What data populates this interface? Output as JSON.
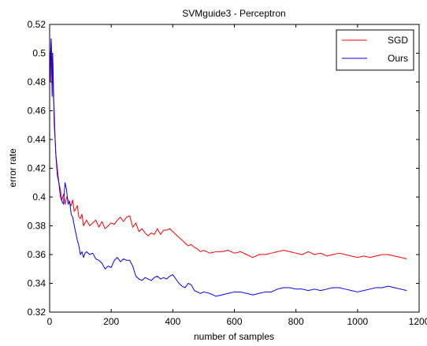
{
  "chart_data": {
    "type": "line",
    "title": "SVMguide3 - Perceptron",
    "xlabel": "number of samples",
    "ylabel": "error rate",
    "xlim": [
      0,
      1200
    ],
    "ylim": [
      0.32,
      0.52
    ],
    "xticks": [
      "0",
      "200",
      "400",
      "600",
      "800",
      "1000",
      "1200"
    ],
    "yticks": [
      "0.32",
      "0.34",
      "0.36",
      "0.38",
      "0.4",
      "0.42",
      "0.44",
      "0.46",
      "0.48",
      "0.5",
      "0.52"
    ],
    "grid": false,
    "legend_position": "top-right",
    "series": [
      {
        "name": "SGD",
        "color": "#ff0000",
        "x": [
          1,
          3,
          5,
          8,
          10,
          12,
          15,
          18,
          20,
          25,
          30,
          35,
          40,
          45,
          50,
          55,
          60,
          65,
          70,
          75,
          80,
          85,
          90,
          95,
          100,
          105,
          110,
          115,
          120,
          130,
          140,
          150,
          160,
          170,
          180,
          190,
          200,
          210,
          220,
          230,
          240,
          250,
          260,
          270,
          280,
          290,
          300,
          310,
          320,
          330,
          340,
          350,
          360,
          370,
          380,
          390,
          400,
          410,
          420,
          430,
          440,
          450,
          460,
          470,
          480,
          490,
          500,
          520,
          540,
          560,
          580,
          600,
          620,
          640,
          660,
          680,
          700,
          720,
          740,
          760,
          780,
          800,
          820,
          840,
          860,
          880,
          900,
          920,
          940,
          960,
          980,
          1000,
          1020,
          1040,
          1060,
          1080,
          1100,
          1120,
          1140,
          1160
        ],
        "values": [
          0.5,
          0.48,
          0.51,
          0.49,
          0.5,
          0.47,
          0.46,
          0.44,
          0.43,
          0.42,
          0.41,
          0.405,
          0.398,
          0.402,
          0.395,
          0.4,
          0.398,
          0.396,
          0.394,
          0.398,
          0.39,
          0.392,
          0.394,
          0.386,
          0.385,
          0.388,
          0.38,
          0.382,
          0.384,
          0.38,
          0.382,
          0.384,
          0.379,
          0.383,
          0.378,
          0.38,
          0.382,
          0.381,
          0.384,
          0.386,
          0.383,
          0.386,
          0.387,
          0.379,
          0.382,
          0.376,
          0.378,
          0.375,
          0.373,
          0.375,
          0.374,
          0.378,
          0.374,
          0.377,
          0.377,
          0.378,
          0.376,
          0.374,
          0.372,
          0.37,
          0.368,
          0.366,
          0.367,
          0.365,
          0.364,
          0.362,
          0.363,
          0.361,
          0.362,
          0.362,
          0.363,
          0.361,
          0.362,
          0.36,
          0.358,
          0.36,
          0.36,
          0.361,
          0.362,
          0.363,
          0.362,
          0.361,
          0.36,
          0.362,
          0.36,
          0.361,
          0.359,
          0.36,
          0.361,
          0.36,
          0.359,
          0.358,
          0.359,
          0.358,
          0.359,
          0.36,
          0.36,
          0.359,
          0.358,
          0.357
        ]
      },
      {
        "name": "Ours",
        "color": "#0000ff",
        "x": [
          1,
          3,
          5,
          8,
          10,
          12,
          15,
          18,
          20,
          25,
          30,
          35,
          40,
          45,
          50,
          55,
          60,
          65,
          70,
          75,
          80,
          85,
          90,
          95,
          100,
          105,
          110,
          115,
          120,
          130,
          140,
          150,
          160,
          170,
          180,
          190,
          200,
          210,
          220,
          230,
          240,
          250,
          260,
          270,
          280,
          290,
          300,
          310,
          320,
          330,
          340,
          350,
          360,
          370,
          380,
          390,
          400,
          410,
          420,
          430,
          440,
          450,
          460,
          470,
          480,
          490,
          500,
          520,
          540,
          560,
          580,
          600,
          620,
          640,
          660,
          680,
          700,
          720,
          740,
          760,
          780,
          800,
          820,
          840,
          860,
          880,
          900,
          920,
          940,
          960,
          980,
          1000,
          1020,
          1040,
          1060,
          1080,
          1100,
          1120,
          1140,
          1160
        ],
        "values": [
          0.48,
          0.5,
          0.51,
          0.47,
          0.5,
          0.48,
          0.45,
          0.44,
          0.43,
          0.415,
          0.41,
          0.4,
          0.397,
          0.395,
          0.41,
          0.405,
          0.395,
          0.397,
          0.388,
          0.386,
          0.38,
          0.375,
          0.37,
          0.366,
          0.36,
          0.362,
          0.358,
          0.361,
          0.362,
          0.36,
          0.361,
          0.357,
          0.356,
          0.354,
          0.35,
          0.352,
          0.351,
          0.356,
          0.358,
          0.355,
          0.357,
          0.356,
          0.356,
          0.352,
          0.345,
          0.343,
          0.342,
          0.344,
          0.343,
          0.342,
          0.344,
          0.345,
          0.343,
          0.344,
          0.343,
          0.345,
          0.346,
          0.343,
          0.34,
          0.338,
          0.337,
          0.34,
          0.339,
          0.335,
          0.334,
          0.333,
          0.334,
          0.333,
          0.331,
          0.332,
          0.333,
          0.334,
          0.334,
          0.333,
          0.332,
          0.333,
          0.334,
          0.334,
          0.336,
          0.337,
          0.337,
          0.336,
          0.336,
          0.335,
          0.336,
          0.335,
          0.336,
          0.337,
          0.337,
          0.336,
          0.335,
          0.334,
          0.335,
          0.336,
          0.337,
          0.337,
          0.338,
          0.337,
          0.336,
          0.335
        ]
      }
    ]
  }
}
